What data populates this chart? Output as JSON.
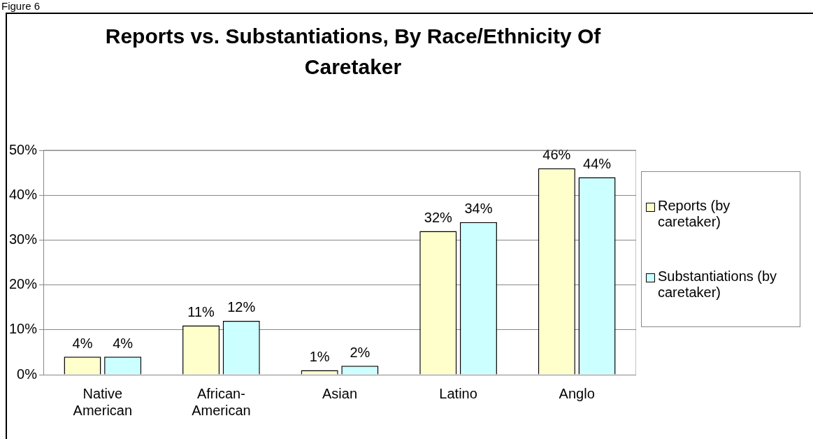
{
  "chart_data": {
    "type": "bar",
    "title": "Reports vs. Substantiations, By Race/Ethnicity Of Caretaker",
    "annotations": [
      "Figure 6"
    ],
    "categories": [
      "Native American",
      "African-American",
      "Asian",
      "Latino",
      "Anglo"
    ],
    "series": [
      {
        "name": "Reports (by caretaker)",
        "color": "#ffffcc",
        "values": [
          4,
          11,
          1,
          32,
          46
        ],
        "value_labels": [
          "4%",
          "11%",
          "1%",
          "32%",
          "46%"
        ]
      },
      {
        "name": "Substantiations (by caretaker)",
        "color": "#ccffff",
        "values": [
          4,
          12,
          2,
          34,
          44
        ],
        "value_labels": [
          "4%",
          "12%",
          "2%",
          "34%",
          "44%"
        ]
      }
    ],
    "ylim": [
      0,
      50
    ],
    "yticks": [
      {
        "value": 0,
        "label": "0%"
      },
      {
        "value": 10,
        "label": "10%"
      },
      {
        "value": 20,
        "label": "20%"
      },
      {
        "value": 30,
        "label": "30%"
      },
      {
        "value": 40,
        "label": "40%"
      },
      {
        "value": 50,
        "label": "50%"
      }
    ],
    "grid": "y",
    "legend": "right"
  }
}
